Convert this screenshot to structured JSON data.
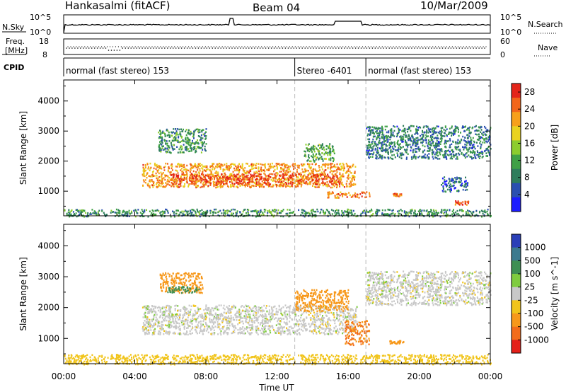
{
  "header": {
    "station": "Hankasalmi (fitACF)",
    "beam": "Beam 04",
    "date": "10/Mar/2009"
  },
  "summary_panels": {
    "nsky_label": "N.Sky",
    "nsky_ticks": [
      "10^5",
      "10^0"
    ],
    "nsearch_label": "N.Search",
    "nsearch_ticks": [
      "10^5",
      "10^0"
    ],
    "freq_label_line1": "Freq.",
    "freq_label_line2": "[MHz]",
    "freq_ticks": [
      "18",
      "8"
    ],
    "nave_label": "Nave",
    "nave_ticks": [
      "60",
      "0"
    ],
    "cpid_label": "CPID"
  },
  "modes": [
    {
      "label": "normal (fast stereo) 153",
      "start_hour": 0,
      "end_hour": 13
    },
    {
      "label": "Stereo -6401",
      "start_hour": 13,
      "end_hour": 17
    },
    {
      "label": "normal (fast stereo) 153",
      "start_hour": 17,
      "end_hour": 24
    }
  ],
  "chart_data": [
    {
      "type": "heatmap",
      "title": "",
      "xlabel": "Time UT",
      "ylabel": "Slant Range [km]",
      "x_ticks": [
        "00:00",
        "04:00",
        "08:00",
        "12:00",
        "16:00",
        "20:00",
        "00:00"
      ],
      "xlim_hours": [
        0,
        24
      ],
      "y_ticks": [
        1000,
        2000,
        3000,
        4000
      ],
      "ylim_km": [
        180,
        4700
      ],
      "colorbar": {
        "label": "Power [dB]",
        "ticks": [
          4,
          8,
          12,
          16,
          20,
          24,
          28
        ],
        "range": [
          0,
          30
        ],
        "colors": [
          "#1b1bff",
          "#2a4fb0",
          "#2e7d5c",
          "#3fa046",
          "#8ccc2e",
          "#e9d21f",
          "#f7a01a",
          "#f2661a",
          "#e4251a"
        ]
      },
      "regions": [
        {
          "hours": [
            4.4,
            16.4
          ],
          "km": [
            1150,
            1950
          ],
          "value": 22,
          "description_of_band": "main"
        },
        {
          "hours": [
            6.0,
            15.5
          ],
          "km": [
            1250,
            1600
          ],
          "value": 27
        },
        {
          "hours": [
            5.3,
            8.0
          ],
          "km": [
            2300,
            3100
          ],
          "value": 10
        },
        {
          "hours": [
            13.5,
            15.2
          ],
          "km": [
            2000,
            2600
          ],
          "value": 12
        },
        {
          "hours": [
            14.8,
            17.3
          ],
          "km": [
            800,
            1000
          ],
          "value": 24
        },
        {
          "hours": [
            17.0,
            24.0
          ],
          "km": [
            2100,
            3200
          ],
          "value": 8
        },
        {
          "hours": [
            21.2,
            22.7
          ],
          "km": [
            1000,
            1500
          ],
          "value": 6
        },
        {
          "hours": [
            18.5,
            19.0
          ],
          "km": [
            850,
            950
          ],
          "value": 24
        },
        {
          "hours": [
            22.0,
            22.8
          ],
          "km": [
            550,
            700
          ],
          "value": 26
        },
        {
          "hours": [
            0,
            24
          ],
          "km": [
            180,
            420
          ],
          "value": 10
        }
      ]
    },
    {
      "type": "heatmap",
      "title": "",
      "xlabel": "Time UT",
      "ylabel": "Slant Range [km]",
      "x_ticks": [
        "00:00",
        "04:00",
        "08:00",
        "12:00",
        "16:00",
        "20:00",
        "00:00"
      ],
      "xlim_hours": [
        0,
        24
      ],
      "y_ticks": [
        1000,
        2000,
        3000,
        4000
      ],
      "ylim_km": [
        180,
        4700
      ],
      "colorbar": {
        "label": "Velocity [m s^-1]",
        "ticks": [
          "1000",
          "500",
          "100",
          "25",
          "-25",
          "-100",
          "-500",
          "-1000"
        ],
        "colors": [
          "#2a3fb8",
          "#3c7a8e",
          "#3e8f53",
          "#7fcc3f",
          "#c8c8c8",
          "#f1c41a",
          "#f7981a",
          "#f26c1a",
          "#e4201a"
        ]
      },
      "regions": [
        {
          "hours": [
            4.4,
            16.5
          ],
          "km": [
            1150,
            2100
          ],
          "value": 0
        },
        {
          "hours": [
            5.4,
            7.8
          ],
          "km": [
            2500,
            3150
          ],
          "value": -300
        },
        {
          "hours": [
            5.8,
            7.6
          ],
          "km": [
            2500,
            2700
          ],
          "value": 150
        },
        {
          "hours": [
            13.0,
            16.0
          ],
          "km": [
            1900,
            2600
          ],
          "value": -400
        },
        {
          "hours": [
            15.8,
            17.2
          ],
          "km": [
            800,
            1600
          ],
          "value": -500
        },
        {
          "hours": [
            17.0,
            24.0
          ],
          "km": [
            2100,
            3200
          ],
          "value": 0
        },
        {
          "hours": [
            0,
            24
          ],
          "km": [
            180,
            500
          ],
          "value": -60
        },
        {
          "hours": [
            18.3,
            19.1
          ],
          "km": [
            850,
            950
          ],
          "value": -300
        }
      ]
    }
  ]
}
